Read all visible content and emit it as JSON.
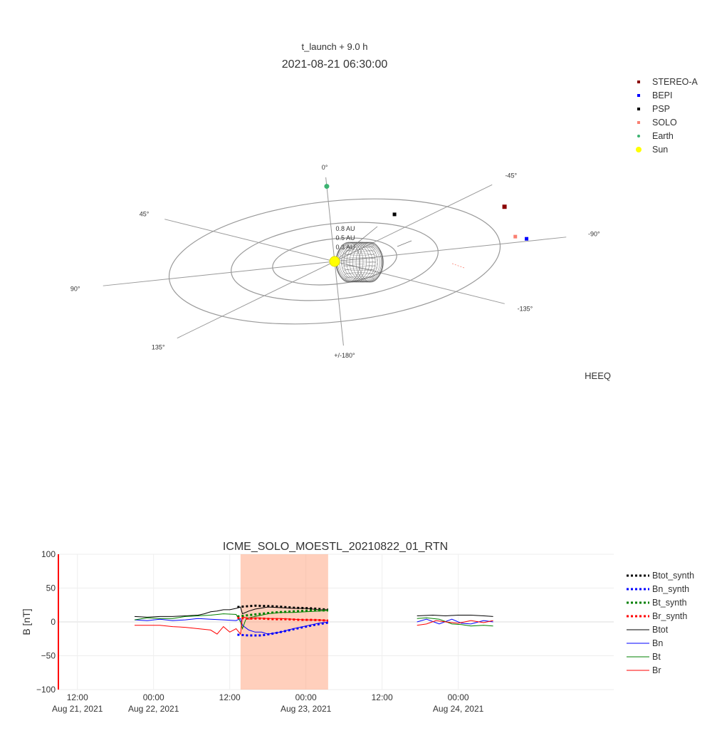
{
  "colors": {
    "stereo_a": "#8b0000",
    "bepi": "#0000ff",
    "psp": "#000000",
    "solo": "#fa8072",
    "earth": "#3cb371",
    "sun": "#ffff00",
    "ring": "#999999",
    "cme_mesh": "#555555",
    "highlight": "#ffa07a",
    "btot": "#000000",
    "bn": "#0000ff",
    "bt": "#008000",
    "br": "#ff0000",
    "yaxis_line": "#ff0000"
  },
  "chart_data": [
    {
      "type": "scatter",
      "subtitle": "t_launch + 9.0 h",
      "title": "2021-08-21 06:30:00",
      "frame_label": "HEEQ",
      "radial_labels": [
        "0.3 AU",
        "0.5 AU",
        "0.8 AU"
      ],
      "rings_au": [
        0.3,
        0.5,
        0.8
      ],
      "angle_labels": [
        {
          "angle": 0,
          "text": "0°"
        },
        {
          "angle": -45,
          "text": "-45°"
        },
        {
          "angle": -90,
          "text": "-90°"
        },
        {
          "angle": -135,
          "text": "-135°"
        },
        {
          "angle": 180,
          "text": "+/-180°"
        },
        {
          "angle": 135,
          "text": "135°"
        },
        {
          "angle": 90,
          "text": "90°"
        },
        {
          "angle": 45,
          "text": "45°"
        }
      ],
      "legend": [
        {
          "name": "STEREO-A",
          "color_key": "stereo_a",
          "shape": "square"
        },
        {
          "name": "BEPI",
          "color_key": "bepi",
          "shape": "square"
        },
        {
          "name": "PSP",
          "color_key": "psp",
          "shape": "square"
        },
        {
          "name": "SOLO",
          "color_key": "solo",
          "shape": "square"
        },
        {
          "name": "Earth",
          "color_key": "earth",
          "shape": "circle"
        },
        {
          "name": "Sun",
          "color_key": "sun",
          "shape": "circle"
        }
      ],
      "bodies": [
        {
          "name": "Sun",
          "r": 0,
          "lon": 0,
          "color_key": "sun",
          "shape": "circle",
          "size": 7
        },
        {
          "name": "Earth",
          "r": 1.0,
          "lon": 0,
          "color_key": "earth",
          "shape": "circle",
          "size": 3.5
        },
        {
          "name": "PSP",
          "r": 0.62,
          "lon": -30,
          "color_key": "psp",
          "shape": "square",
          "size": 5
        },
        {
          "name": "SOLO",
          "r": 0.88,
          "lon": -85,
          "color_key": "solo",
          "shape": "square",
          "size": 5
        },
        {
          "name": "BEPI",
          "r": 0.93,
          "lon": -88,
          "color_key": "bepi",
          "shape": "square",
          "size": 5
        },
        {
          "name": "STEREO-A",
          "r": 0.97,
          "lon": -60,
          "color_key": "stereo_a",
          "shape": "square",
          "size": 6
        }
      ]
    },
    {
      "type": "line",
      "title": "ICME_SOLO_MOESTL_20210822_01_RTN",
      "ylabel": "B [nT]",
      "ylim": [
        -100,
        100
      ],
      "xlim_hours": [
        -15,
        72.5
      ],
      "yticks": [
        100,
        50,
        0,
        -50,
        -100
      ],
      "ytick_labels": [
        "100",
        "50",
        "0",
        "−50",
        "−100"
      ],
      "xticks": [
        {
          "hour": -12,
          "time": "12:00",
          "date": "Aug 21, 2021"
        },
        {
          "hour": 0,
          "time": "00:00",
          "date": "Aug 22, 2021"
        },
        {
          "hour": 12,
          "time": "12:00",
          "date": ""
        },
        {
          "hour": 24,
          "time": "00:00",
          "date": "Aug 23, 2021"
        },
        {
          "hour": 36,
          "time": "12:00",
          "date": ""
        },
        {
          "hour": 48,
          "time": "00:00",
          "date": "Aug 24, 2021"
        }
      ],
      "highlight_hours": [
        13.7,
        27.5
      ],
      "legend": [
        {
          "name": "Btot_synth",
          "color_key": "btot",
          "dash": true
        },
        {
          "name": "Bn_synth",
          "color_key": "bn",
          "dash": true
        },
        {
          "name": "Bt_synth",
          "color_key": "bt",
          "dash": true
        },
        {
          "name": "Br_synth",
          "color_key": "br",
          "dash": true
        },
        {
          "name": "Btot",
          "color_key": "btot",
          "dash": false
        },
        {
          "name": "Bn",
          "color_key": "bn",
          "dash": false
        },
        {
          "name": "Bt",
          "color_key": "bt",
          "dash": false
        },
        {
          "name": "Br",
          "color_key": "br",
          "dash": false
        }
      ],
      "series": [
        {
          "name": "Btot",
          "color_key": "btot",
          "dash": false,
          "segments": [
            [
              [
                -3,
                8
              ],
              [
                -1,
                7
              ],
              [
                1,
                8
              ],
              [
                3,
                8
              ],
              [
                5,
                9
              ],
              [
                7,
                10
              ],
              [
                8,
                12
              ],
              [
                9,
                15
              ],
              [
                10,
                16
              ],
              [
                11,
                18
              ],
              [
                12,
                18
              ],
              [
                13,
                20
              ],
              [
                13.7,
                22
              ],
              [
                14,
                12
              ],
              [
                15,
                16
              ],
              [
                16,
                19
              ],
              [
                18,
                22
              ],
              [
                20,
                21
              ],
              [
                22,
                20
              ],
              [
                24,
                20
              ],
              [
                26,
                18
              ],
              [
                27.5,
                18
              ]
            ],
            [
              [
                41.5,
                9
              ],
              [
                44,
                10
              ],
              [
                46,
                9
              ],
              [
                48,
                10
              ],
              [
                50,
                10
              ],
              [
                52,
                9
              ],
              [
                53.5,
                8
              ]
            ]
          ]
        },
        {
          "name": "Bn",
          "color_key": "bn",
          "dash": false,
          "segments": [
            [
              [
                -3,
                3
              ],
              [
                -1,
                2
              ],
              [
                1,
                4
              ],
              [
                3,
                2
              ],
              [
                5,
                3
              ],
              [
                7,
                5
              ],
              [
                9,
                4
              ],
              [
                11,
                3
              ],
              [
                13,
                2
              ],
              [
                13.7,
                5
              ],
              [
                14,
                -5
              ],
              [
                15,
                -12
              ],
              [
                16,
                -15
              ],
              [
                17,
                -15
              ],
              [
                18,
                -18
              ],
              [
                20,
                -15
              ],
              [
                22,
                -10
              ],
              [
                24,
                -6
              ],
              [
                26,
                -2
              ],
              [
                27.5,
                0
              ]
            ],
            [
              [
                41.5,
                0
              ],
              [
                43,
                4
              ],
              [
                45,
                -3
              ],
              [
                47,
                4
              ],
              [
                48.5,
                -2
              ],
              [
                50,
                -3
              ],
              [
                52,
                2
              ],
              [
                53.5,
                0
              ]
            ]
          ]
        },
        {
          "name": "Bt",
          "color_key": "bt",
          "dash": false,
          "segments": [
            [
              [
                -3,
                3
              ],
              [
                -1,
                6
              ],
              [
                1,
                5
              ],
              [
                3,
                5
              ],
              [
                5,
                8
              ],
              [
                7,
                9
              ],
              [
                9,
                10
              ],
              [
                11,
                12
              ],
              [
                13,
                11
              ],
              [
                13.7,
                0
              ],
              [
                14,
                -10
              ],
              [
                14.5,
                3
              ],
              [
                15,
                6
              ],
              [
                16,
                8
              ],
              [
                18,
                12
              ],
              [
                20,
                14
              ],
              [
                22,
                14
              ],
              [
                24,
                15
              ],
              [
                26,
                16
              ],
              [
                27.5,
                17
              ]
            ],
            [
              [
                41.5,
                5
              ],
              [
                43,
                6
              ],
              [
                45,
                4
              ],
              [
                47,
                -3
              ],
              [
                48.5,
                -4
              ],
              [
                50,
                -6
              ],
              [
                52,
                -5
              ],
              [
                53.5,
                -6
              ]
            ]
          ]
        },
        {
          "name": "Br",
          "color_key": "br",
          "dash": false,
          "segments": [
            [
              [
                -3,
                -5
              ],
              [
                -1,
                -5
              ],
              [
                1,
                -5
              ],
              [
                3,
                -7
              ],
              [
                5,
                -8
              ],
              [
                7,
                -10
              ],
              [
                9,
                -12
              ],
              [
                10,
                -18
              ],
              [
                11,
                -7
              ],
              [
                12,
                -15
              ],
              [
                13,
                -10
              ],
              [
                13.7,
                -18
              ],
              [
                14,
                8
              ],
              [
                15,
                4
              ],
              [
                16,
                6
              ],
              [
                18,
                5
              ],
              [
                20,
                5
              ],
              [
                22,
                4
              ],
              [
                24,
                3
              ],
              [
                26,
                3
              ],
              [
                27.5,
                2
              ]
            ],
            [
              [
                41.5,
                -5
              ],
              [
                43,
                -3
              ],
              [
                44.5,
                2
              ],
              [
                46,
                0
              ],
              [
                48,
                -2
              ],
              [
                50,
                2
              ],
              [
                52,
                -1
              ],
              [
                53.5,
                2
              ]
            ]
          ]
        },
        {
          "name": "Btot_synth",
          "color_key": "btot",
          "dash": true,
          "segments": [
            [
              [
                13.2,
                22
              ],
              [
                16,
                24
              ],
              [
                19,
                23
              ],
              [
                22,
                21
              ],
              [
                25,
                20
              ],
              [
                27.5,
                18
              ]
            ]
          ]
        },
        {
          "name": "Bn_synth",
          "color_key": "bn",
          "dash": true,
          "segments": [
            [
              [
                13.2,
                -19
              ],
              [
                15,
                -20
              ],
              [
                17,
                -20
              ],
              [
                19,
                -17
              ],
              [
                21,
                -13
              ],
              [
                23,
                -9
              ],
              [
                25,
                -5
              ],
              [
                27.5,
                -1
              ]
            ]
          ]
        },
        {
          "name": "Bt_synth",
          "color_key": "bt",
          "dash": true,
          "segments": [
            [
              [
                13.2,
                8
              ],
              [
                15,
                10
              ],
              [
                17,
                12
              ],
              [
                19,
                14
              ],
              [
                21,
                15
              ],
              [
                23,
                16
              ],
              [
                25,
                17
              ],
              [
                27.5,
                17
              ]
            ]
          ]
        },
        {
          "name": "Br_synth",
          "color_key": "br",
          "dash": true,
          "segments": [
            [
              [
                13.2,
                6
              ],
              [
                15,
                5
              ],
              [
                17,
                5
              ],
              [
                19,
                4
              ],
              [
                21,
                4
              ],
              [
                23,
                3
              ],
              [
                25,
                3
              ],
              [
                27.5,
                2
              ]
            ]
          ]
        }
      ]
    }
  ]
}
